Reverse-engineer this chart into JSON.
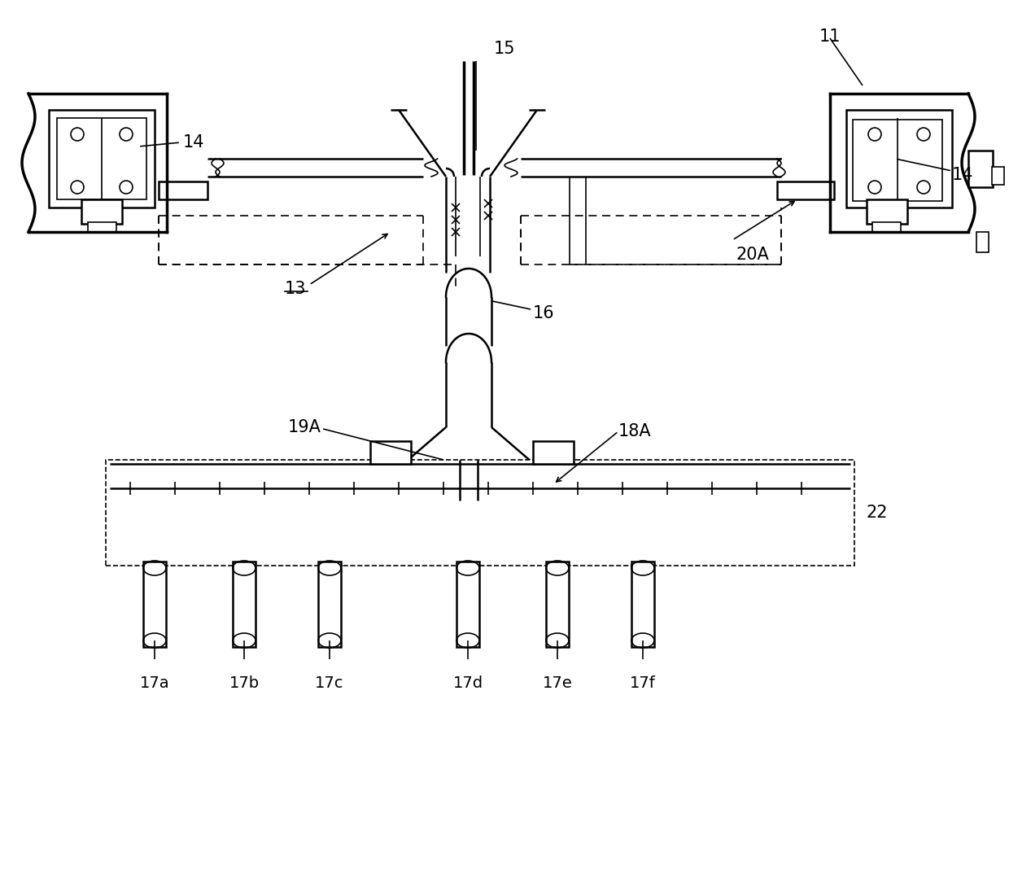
{
  "bg_color": "#ffffff",
  "line_color": "#000000",
  "label_11": "11",
  "label_13": "13",
  "label_14": "14",
  "label_15": "15",
  "label_16": "16",
  "label_17a": "17a",
  "label_17b": "17b",
  "label_17c": "17c",
  "label_17d": "17d",
  "label_17e": "17e",
  "label_17f": "17f",
  "label_18A": "18A",
  "label_19A": "19A",
  "label_20A": "20A",
  "label_22": "22"
}
